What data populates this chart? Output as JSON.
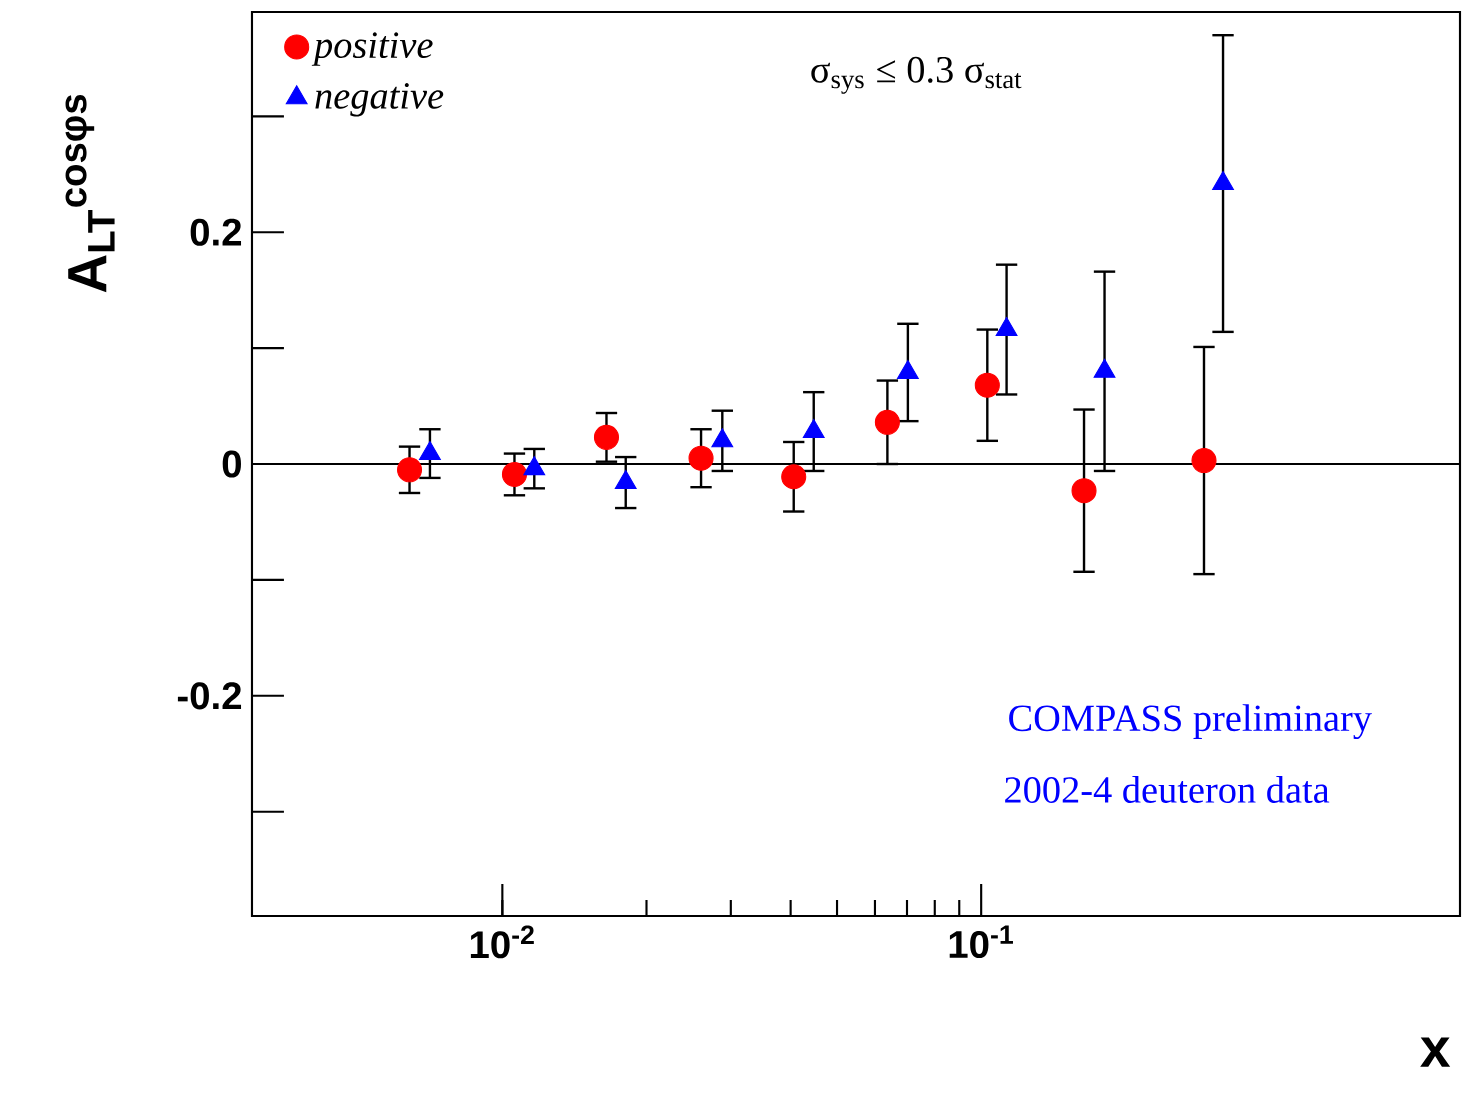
{
  "chart_data": {
    "type": "scatter",
    "xlabel": "x",
    "ylabel": "A$_{LT}$$^{cosφs}$",
    "log": "x",
    "xlim": [
      0.003,
      1.0
    ],
    "ylim": [
      -0.39,
      0.39
    ],
    "xticks": [
      {
        "value": 0.01,
        "label": "10$^{-2}$"
      },
      {
        "value": 0.1,
        "label": "10$^{-1}$"
      }
    ],
    "yticks": [
      {
        "value": -0.3,
        "label": null
      },
      -0.2,
      {
        "value": -0.1,
        "label": null
      },
      0,
      {
        "value": 0.1,
        "label": null
      },
      0.2,
      {
        "value": 0.3,
        "label": null
      }
    ],
    "grid": false,
    "legend": "top left",
    "ref_lines": [
      {
        "axis": "y",
        "value": 0,
        "color": "#000000"
      }
    ],
    "annotations": [
      "σ$_{sys}$ ≤ 0.3 σ$_{stat}$",
      "COMPASS preliminary",
      "2002-4 deuteron data"
    ],
    "series": [
      {
        "name": "positive",
        "color": "#ff0000",
        "marker": "circle",
        "x": [
          0.0064,
          0.0106,
          0.0165,
          0.026,
          0.0406,
          0.0637,
          0.103,
          0.164,
          0.292
        ],
        "values": [
          -0.005,
          -0.009,
          0.023,
          0.005,
          -0.011,
          0.036,
          0.068,
          -0.023,
          0.003
        ],
        "errors": [
          0.02,
          0.018,
          0.021,
          0.025,
          0.03,
          0.036,
          0.048,
          0.07,
          0.098
        ]
      },
      {
        "name": "negative",
        "color": "#0000ff",
        "marker": "triangle",
        "x": [
          0.00706,
          0.01166,
          0.0181,
          0.0288,
          0.0447,
          0.0703,
          0.113,
          0.181,
          0.32
        ],
        "values": [
          0.009,
          -0.004,
          -0.016,
          0.02,
          0.028,
          0.079,
          0.116,
          0.08,
          0.242
        ],
        "errors": [
          0.021,
          0.017,
          0.022,
          0.026,
          0.034,
          0.042,
          0.056,
          0.086,
          0.128
        ]
      }
    ]
  }
}
